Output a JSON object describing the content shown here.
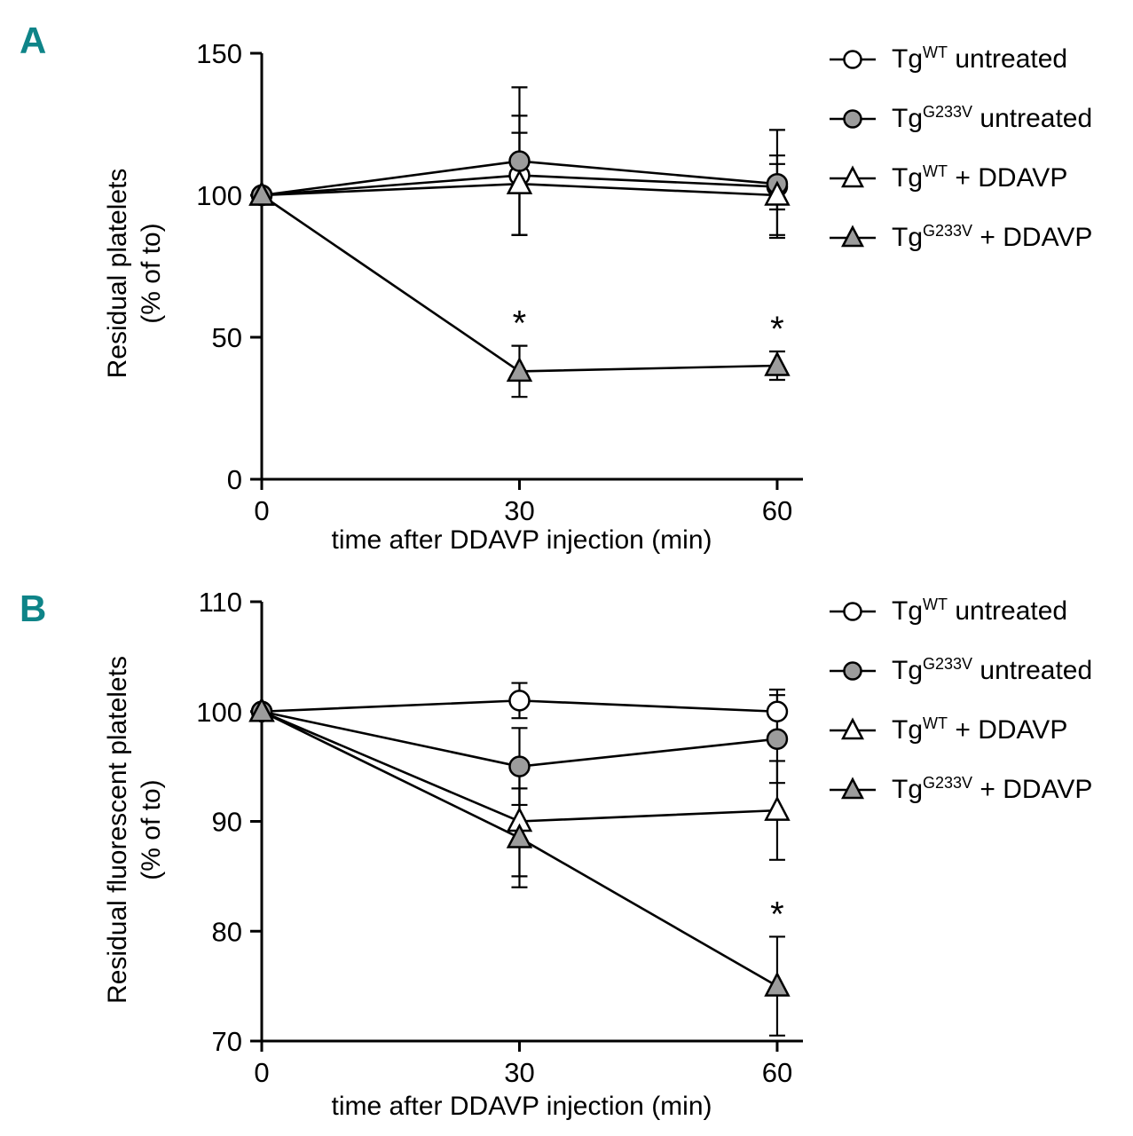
{
  "page": {
    "background": "#ffffff",
    "accent_teal": "#0e8488"
  },
  "marker_colors": {
    "fill_gray": "#9c9c9c",
    "open_fill": "#ffffff",
    "stroke": "#000000"
  },
  "chart_data": [
    {
      "type": "line",
      "panel_letter": "A",
      "title": "",
      "xlabel": "time after DDAVP injection (min)",
      "ylabel": "Residual platelets (% of to)",
      "ylabel_lines": [
        "Residual platelets",
        "(% of to)"
      ],
      "x": [
        0,
        30,
        60
      ],
      "xticks": [
        0,
        30,
        60
      ],
      "xlim": [
        0,
        63
      ],
      "ylim": [
        0,
        150
      ],
      "yticks": [
        0,
        50,
        100,
        150
      ],
      "grid": false,
      "legend_position": "right",
      "sig_symbol": "*",
      "series": [
        {
          "name": "TgWT untreated",
          "label_parts": [
            {
              "t": "Tg"
            },
            {
              "t": "WT",
              "sup": true
            },
            {
              "t": " untreated"
            }
          ],
          "marker": "circle-open",
          "values": [
            100,
            107,
            103
          ],
          "errors": [
            0,
            21,
            8
          ],
          "sig": [
            false,
            false,
            false
          ]
        },
        {
          "name": "TgG233V untreated",
          "label_parts": [
            {
              "t": "Tg"
            },
            {
              "t": "G233V",
              "sup": true
            },
            {
              "t": " untreated"
            }
          ],
          "marker": "circle-filled",
          "values": [
            100,
            112,
            104
          ],
          "errors": [
            0,
            26,
            19
          ],
          "sig": [
            false,
            false,
            false
          ]
        },
        {
          "name": "TgWT + DDAVP",
          "label_parts": [
            {
              "t": "Tg"
            },
            {
              "t": "WT",
              "sup": true
            },
            {
              "t": " + DDAVP"
            }
          ],
          "marker": "triangle-open",
          "values": [
            100,
            104,
            100
          ],
          "errors": [
            0,
            18,
            14
          ],
          "sig": [
            false,
            false,
            false
          ]
        },
        {
          "name": "TgG233V + DDAVP",
          "label_parts": [
            {
              "t": "Tg"
            },
            {
              "t": "G233V",
              "sup": true
            },
            {
              "t": " + DDAVP"
            }
          ],
          "marker": "triangle-filled",
          "values": [
            100,
            38,
            40
          ],
          "errors": [
            0,
            9,
            5
          ],
          "sig": [
            false,
            true,
            true
          ]
        }
      ]
    },
    {
      "type": "line",
      "panel_letter": "B",
      "title": "",
      "xlabel": "time after DDAVP injection (min)",
      "ylabel": "Residual fluorescent platelets (% of to)",
      "ylabel_lines": [
        "Residual fluorescent  platelets",
        "(% of to)"
      ],
      "x": [
        0,
        30,
        60
      ],
      "xticks": [
        0,
        30,
        60
      ],
      "xlim": [
        0,
        63
      ],
      "ylim": [
        70,
        110
      ],
      "yticks": [
        70,
        80,
        90,
        100,
        110
      ],
      "grid": false,
      "legend_position": "right",
      "sig_symbol": "*",
      "series": [
        {
          "name": "TgWT untreated",
          "label_parts": [
            {
              "t": "Tg"
            },
            {
              "t": "WT",
              "sup": true
            },
            {
              "t": " untreated"
            }
          ],
          "marker": "circle-open",
          "values": [
            100,
            101,
            100
          ],
          "errors": [
            0,
            1.6,
            2
          ],
          "sig": [
            false,
            false,
            false
          ]
        },
        {
          "name": "TgG233V untreated",
          "label_parts": [
            {
              "t": "Tg"
            },
            {
              "t": "G233V",
              "sup": true
            },
            {
              "t": " untreated"
            }
          ],
          "marker": "circle-filled",
          "values": [
            100,
            95,
            97.5
          ],
          "errors": [
            0,
            3.5,
            4
          ],
          "sig": [
            false,
            false,
            false
          ]
        },
        {
          "name": "TgWT + DDAVP",
          "label_parts": [
            {
              "t": "Tg"
            },
            {
              "t": "WT",
              "sup": true
            },
            {
              "t": " + DDAVP"
            }
          ],
          "marker": "triangle-open",
          "values": [
            100,
            90,
            91
          ],
          "errors": [
            0,
            5,
            4.5
          ],
          "sig": [
            false,
            false,
            false
          ]
        },
        {
          "name": "TgG233V + DDAVP",
          "label_parts": [
            {
              "t": "Tg"
            },
            {
              "t": "G233V",
              "sup": true
            },
            {
              "t": " + DDAVP"
            }
          ],
          "marker": "triangle-filled",
          "values": [
            100,
            88.5,
            75
          ],
          "errors": [
            0,
            4.5,
            4.5
          ],
          "sig": [
            false,
            false,
            true
          ]
        }
      ]
    }
  ]
}
